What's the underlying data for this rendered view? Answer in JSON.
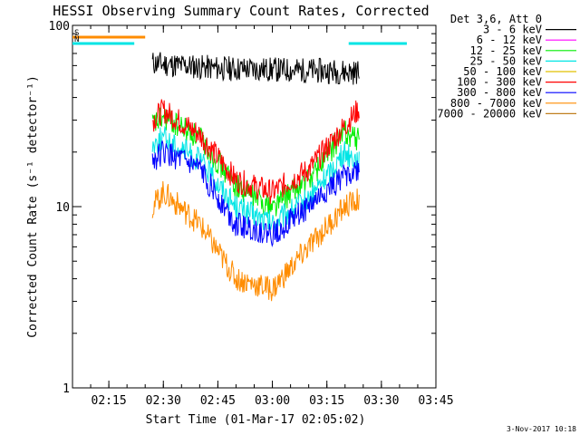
{
  "chart_data": {
    "type": "line",
    "title": "HESSI Observing Summary Count Rates, Corrected",
    "xlabel": "Start Time (01-Mar-17 02:05:02)",
    "ylabel": "Corrected Count Rate (s⁻¹ detector⁻¹)",
    "footer_timestamp": "3-Nov-2017 10:18",
    "y_scale": "log",
    "ylim": [
      1,
      100
    ],
    "y_ticks": [
      "1",
      "10",
      "100"
    ],
    "xlim_minutes_from_0205": [
      0,
      100
    ],
    "x_ticks": [
      "02:15",
      "02:30",
      "02:45",
      "03:00",
      "03:15",
      "03:30",
      "03:45"
    ],
    "legend": {
      "position": "top-right",
      "title": "Det 3,6, Att 0",
      "entries": [
        {
          "label": "3 - 6 keV",
          "color": "#000000"
        },
        {
          "label": "6 - 12 keV",
          "color": "#ff00ff"
        },
        {
          "label": "12 - 25 keV",
          "color": "#00ee00"
        },
        {
          "label": "25 - 50 keV",
          "color": "#00e5e5"
        },
        {
          "label": "50 - 100 keV",
          "color": "#e0c000"
        },
        {
          "label": "100 - 300 keV",
          "color": "#ff0000"
        },
        {
          "label": "300 - 800 keV",
          "color": "#0000ff"
        },
        {
          "label": "800 - 7000 keV",
          "color": "#ff8c00"
        },
        {
          "label": "7000 - 20000 keV",
          "color": "#c08020"
        }
      ]
    },
    "flags": [
      {
        "label": "S",
        "color": "#ff8c00",
        "start": "02:05",
        "end": "02:25"
      },
      {
        "label": "N",
        "color": "#00e5e5",
        "start": "02:05",
        "end": "02:22"
      },
      {
        "label": "",
        "color": "#00e5e5",
        "start": "03:21",
        "end": "03:37"
      }
    ],
    "series": [
      {
        "name": "3 - 6 keV",
        "color": "#000000",
        "x": [
          "02:27",
          "02:35",
          "02:45",
          "03:00",
          "03:15",
          "03:24"
        ],
        "y": [
          62,
          60,
          58,
          57,
          56,
          55
        ]
      },
      {
        "name": "12 - 25 keV",
        "color": "#00ee00",
        "x": [
          "02:27",
          "02:30",
          "02:40",
          "02:50",
          "03:00",
          "03:10",
          "03:20",
          "03:24"
        ],
        "y": [
          28,
          31,
          24,
          13,
          10,
          14,
          26,
          23
        ]
      },
      {
        "name": "25 - 50 keV",
        "color": "#00e5e5",
        "x": [
          "02:27",
          "02:30",
          "02:40",
          "02:50",
          "03:00",
          "03:10",
          "03:20",
          "03:24"
        ],
        "y": [
          22,
          24,
          18,
          10,
          8,
          11,
          20,
          18
        ]
      },
      {
        "name": "100 - 300 keV",
        "color": "#ff0000",
        "x": [
          "02:27",
          "02:30",
          "02:40",
          "02:50",
          "03:00",
          "03:10",
          "03:20",
          "03:24"
        ],
        "y": [
          30,
          34,
          25,
          14,
          12,
          16,
          28,
          35
        ]
      },
      {
        "name": "300 - 800 keV",
        "color": "#0000ff",
        "x": [
          "02:27",
          "02:30",
          "02:40",
          "02:50",
          "03:00",
          "03:10",
          "03:20",
          "03:24"
        ],
        "y": [
          18,
          20,
          16,
          8,
          7,
          10,
          15,
          16
        ]
      },
      {
        "name": "800 - 7000 keV",
        "color": "#ff8c00",
        "x": [
          "02:27",
          "02:30",
          "02:40",
          "02:50",
          "03:00",
          "03:10",
          "03:20",
          "03:24"
        ],
        "y": [
          10,
          12,
          8,
          4,
          3.5,
          6,
          10,
          11
        ]
      }
    ]
  }
}
